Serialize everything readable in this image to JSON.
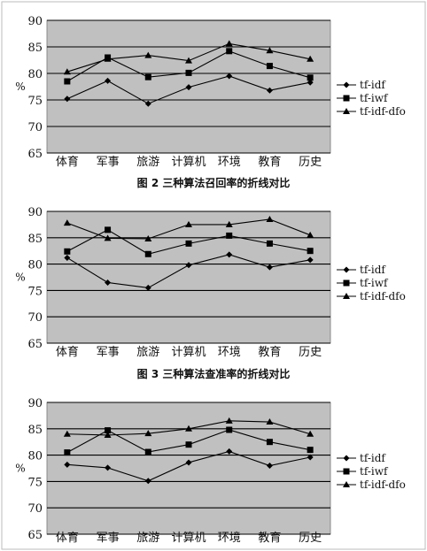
{
  "chart_data": [
    {
      "type": "line",
      "title": "",
      "ylabel": "%",
      "ylim": [
        65,
        90
      ],
      "yticks": [
        65,
        70,
        75,
        80,
        85,
        90
      ],
      "categories": [
        "体育",
        "军事",
        "旅游",
        "计算机",
        "环境",
        "教育",
        "历史"
      ],
      "legend_position": "right",
      "grid": true,
      "series": [
        {
          "name": "tf-idf",
          "marker": "diamond",
          "values": [
            75.2,
            78.6,
            74.3,
            77.4,
            79.5,
            76.8,
            78.3
          ]
        },
        {
          "name": "tf-iwf",
          "marker": "square",
          "values": [
            78.5,
            83.0,
            79.3,
            80.1,
            84.2,
            81.4,
            79.2
          ]
        },
        {
          "name": "tf-idf-dfo",
          "marker": "triangle",
          "values": [
            80.3,
            82.7,
            83.4,
            82.4,
            85.6,
            84.3,
            82.7
          ]
        }
      ],
      "caption": "图 2  三种算法召回率的折线对比"
    },
    {
      "type": "line",
      "title": "",
      "ylabel": "%",
      "ylim": [
        65,
        90
      ],
      "yticks": [
        65,
        70,
        75,
        80,
        85,
        90
      ],
      "categories": [
        "体育",
        "军事",
        "旅游",
        "计算机",
        "环境",
        "教育",
        "历史"
      ],
      "legend_position": "right",
      "grid": true,
      "series": [
        {
          "name": "tf-idf",
          "marker": "diamond",
          "values": [
            81.2,
            76.5,
            75.5,
            79.8,
            81.8,
            79.4,
            80.8
          ]
        },
        {
          "name": "tf-iwf",
          "marker": "square",
          "values": [
            82.4,
            86.5,
            81.9,
            83.9,
            85.4,
            83.9,
            82.5
          ]
        },
        {
          "name": "tf-idf-dfo",
          "marker": "triangle",
          "values": [
            87.8,
            84.9,
            84.8,
            87.5,
            87.5,
            88.5,
            85.5
          ]
        }
      ],
      "caption": "图 3  三种算法查准率的折线对比"
    },
    {
      "type": "line",
      "title": "",
      "ylabel": "%",
      "ylim": [
        65,
        90
      ],
      "yticks": [
        65,
        70,
        75,
        80,
        85,
        90
      ],
      "categories": [
        "体育",
        "军事",
        "旅游",
        "计算机",
        "环境",
        "教育",
        "历史"
      ],
      "legend_position": "right",
      "grid": true,
      "series": [
        {
          "name": "tf-idf",
          "marker": "diamond",
          "values": [
            78.2,
            77.6,
            75.1,
            78.6,
            80.7,
            78.0,
            79.6
          ]
        },
        {
          "name": "tf-iwf",
          "marker": "square",
          "values": [
            80.5,
            84.7,
            80.6,
            82.0,
            84.8,
            82.5,
            81.0
          ]
        },
        {
          "name": "tf-idf-dfo",
          "marker": "triangle",
          "values": [
            84.0,
            83.8,
            84.1,
            85.0,
            86.5,
            86.3,
            84.0
          ]
        }
      ]
    }
  ],
  "style": {
    "plot_background": "#c0c0c0",
    "line_color": "#000000",
    "page_background": "#ffffff"
  }
}
